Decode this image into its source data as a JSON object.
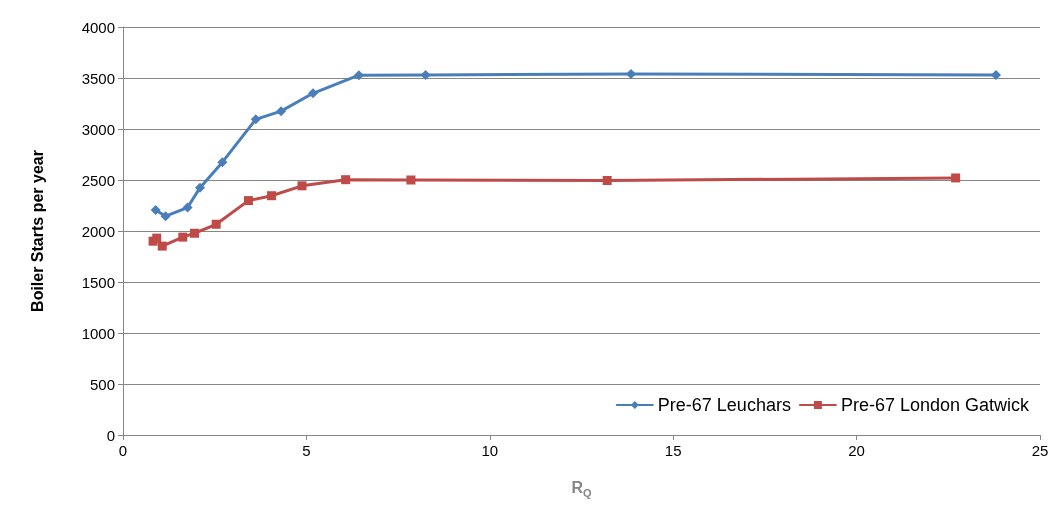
{
  "chart_data": {
    "type": "line",
    "xlabel": "R$_{Q}$",
    "ylabel": "Boiler Starts per year",
    "xlim": [
      0,
      25
    ],
    "xticks": [
      0,
      5,
      10,
      15,
      20,
      25
    ],
    "ylim": [
      0,
      4000
    ],
    "yticks": [
      0,
      500,
      1000,
      1500,
      2000,
      2500,
      3000,
      3500,
      4000
    ],
    "grid": "y",
    "legend": "bottom right",
    "series": [
      {
        "name": "Pre-67 Leuchars",
        "color": "#4a7ebb",
        "marker": "diamond",
        "x": [
          0.89,
          1.16,
          1.76,
          2.1,
          2.71,
          3.62,
          4.31,
          5.18,
          6.43,
          8.25,
          13.85,
          23.8
        ],
        "values": [
          2205,
          2145,
          2230,
          2425,
          2675,
          3095,
          3175,
          3350,
          3528,
          3530,
          3540,
          3530
        ]
      },
      {
        "name": "Pre-67 London Gatwick",
        "color": "#be4b48",
        "marker": "square",
        "x": [
          0.82,
          0.92,
          1.07,
          1.63,
          1.95,
          2.54,
          3.42,
          4.05,
          4.88,
          6.07,
          7.85,
          13.2,
          22.7
        ],
        "values": [
          1900,
          1930,
          1852,
          1940,
          1978,
          2066,
          2298,
          2346,
          2443,
          2503,
          2500,
          2495,
          2520
        ]
      }
    ]
  }
}
